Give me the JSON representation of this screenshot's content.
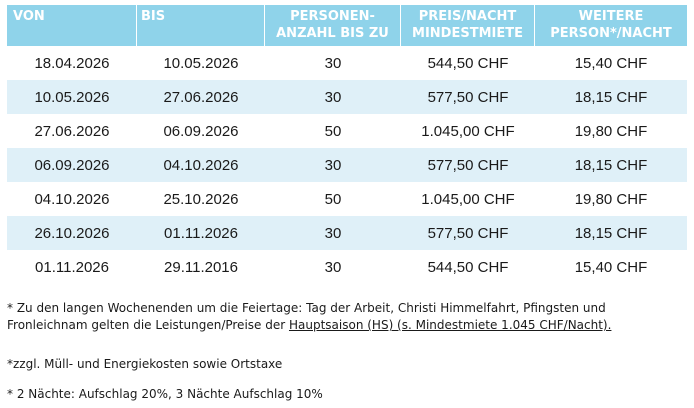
{
  "table": {
    "headers": {
      "von": "VON",
      "bis": "BIS",
      "personen": "PERSONEN-\nANZAHL BIS ZU",
      "preis": "PREIS/NACHT\nMINDESTMIETE",
      "weitere": "WEITERE\nPERSON*/NACHT"
    },
    "rows": [
      {
        "von": "18.04.2026",
        "bis": "10.05.2026",
        "personen": "30",
        "preis": "544,50 CHF",
        "weitere": "15,40 CHF"
      },
      {
        "von": "10.05.2026",
        "bis": "27.06.2026",
        "personen": "30",
        "preis": "577,50 CHF",
        "weitere": "18,15 CHF"
      },
      {
        "von": "27.06.2026",
        "bis": "06.09.2026",
        "personen": "50",
        "preis": "1.045,00 CHF",
        "weitere": "19,80 CHF"
      },
      {
        "von": "06.09.2026",
        "bis": "04.10.2026",
        "personen": "30",
        "preis": "577,50 CHF",
        "weitere": "18,15 CHF"
      },
      {
        "von": "04.10.2026",
        "bis": "25.10.2026",
        "personen": "50",
        "preis": "1.045,00 CHF",
        "weitere": "19,80 CHF"
      },
      {
        "von": "26.10.2026",
        "bis": "01.11.2026",
        "personen": "30",
        "preis": "577,50 CHF",
        "weitere": "18,15 CHF"
      },
      {
        "von": "01.11.2026",
        "bis": "29.11.2016",
        "personen": "30",
        "preis": "544,50 CHF",
        "weitere": "15,40 CHF"
      }
    ]
  },
  "notes": {
    "note1_pre": "* Zu den langen Wochenenden um die Feiertage: Tag der Arbeit, Christi Himmelfahrt, Pfingsten und Fronleichnam gelten die Leistungen/Preise der ",
    "note1_link": "Hauptsaison (HS) (s. Mindestmiete 1.045 CHF/Nacht).",
    "note2": "*zzgl. Müll- und Energiekosten sowie Ortstaxe",
    "note3": "* 2 Nächte: Aufschlag 20%, 3 Nächte Aufschlag 10%"
  },
  "colors": {
    "header_bg": "#8fd3ea",
    "alt_row_bg": "#dff0f8"
  }
}
